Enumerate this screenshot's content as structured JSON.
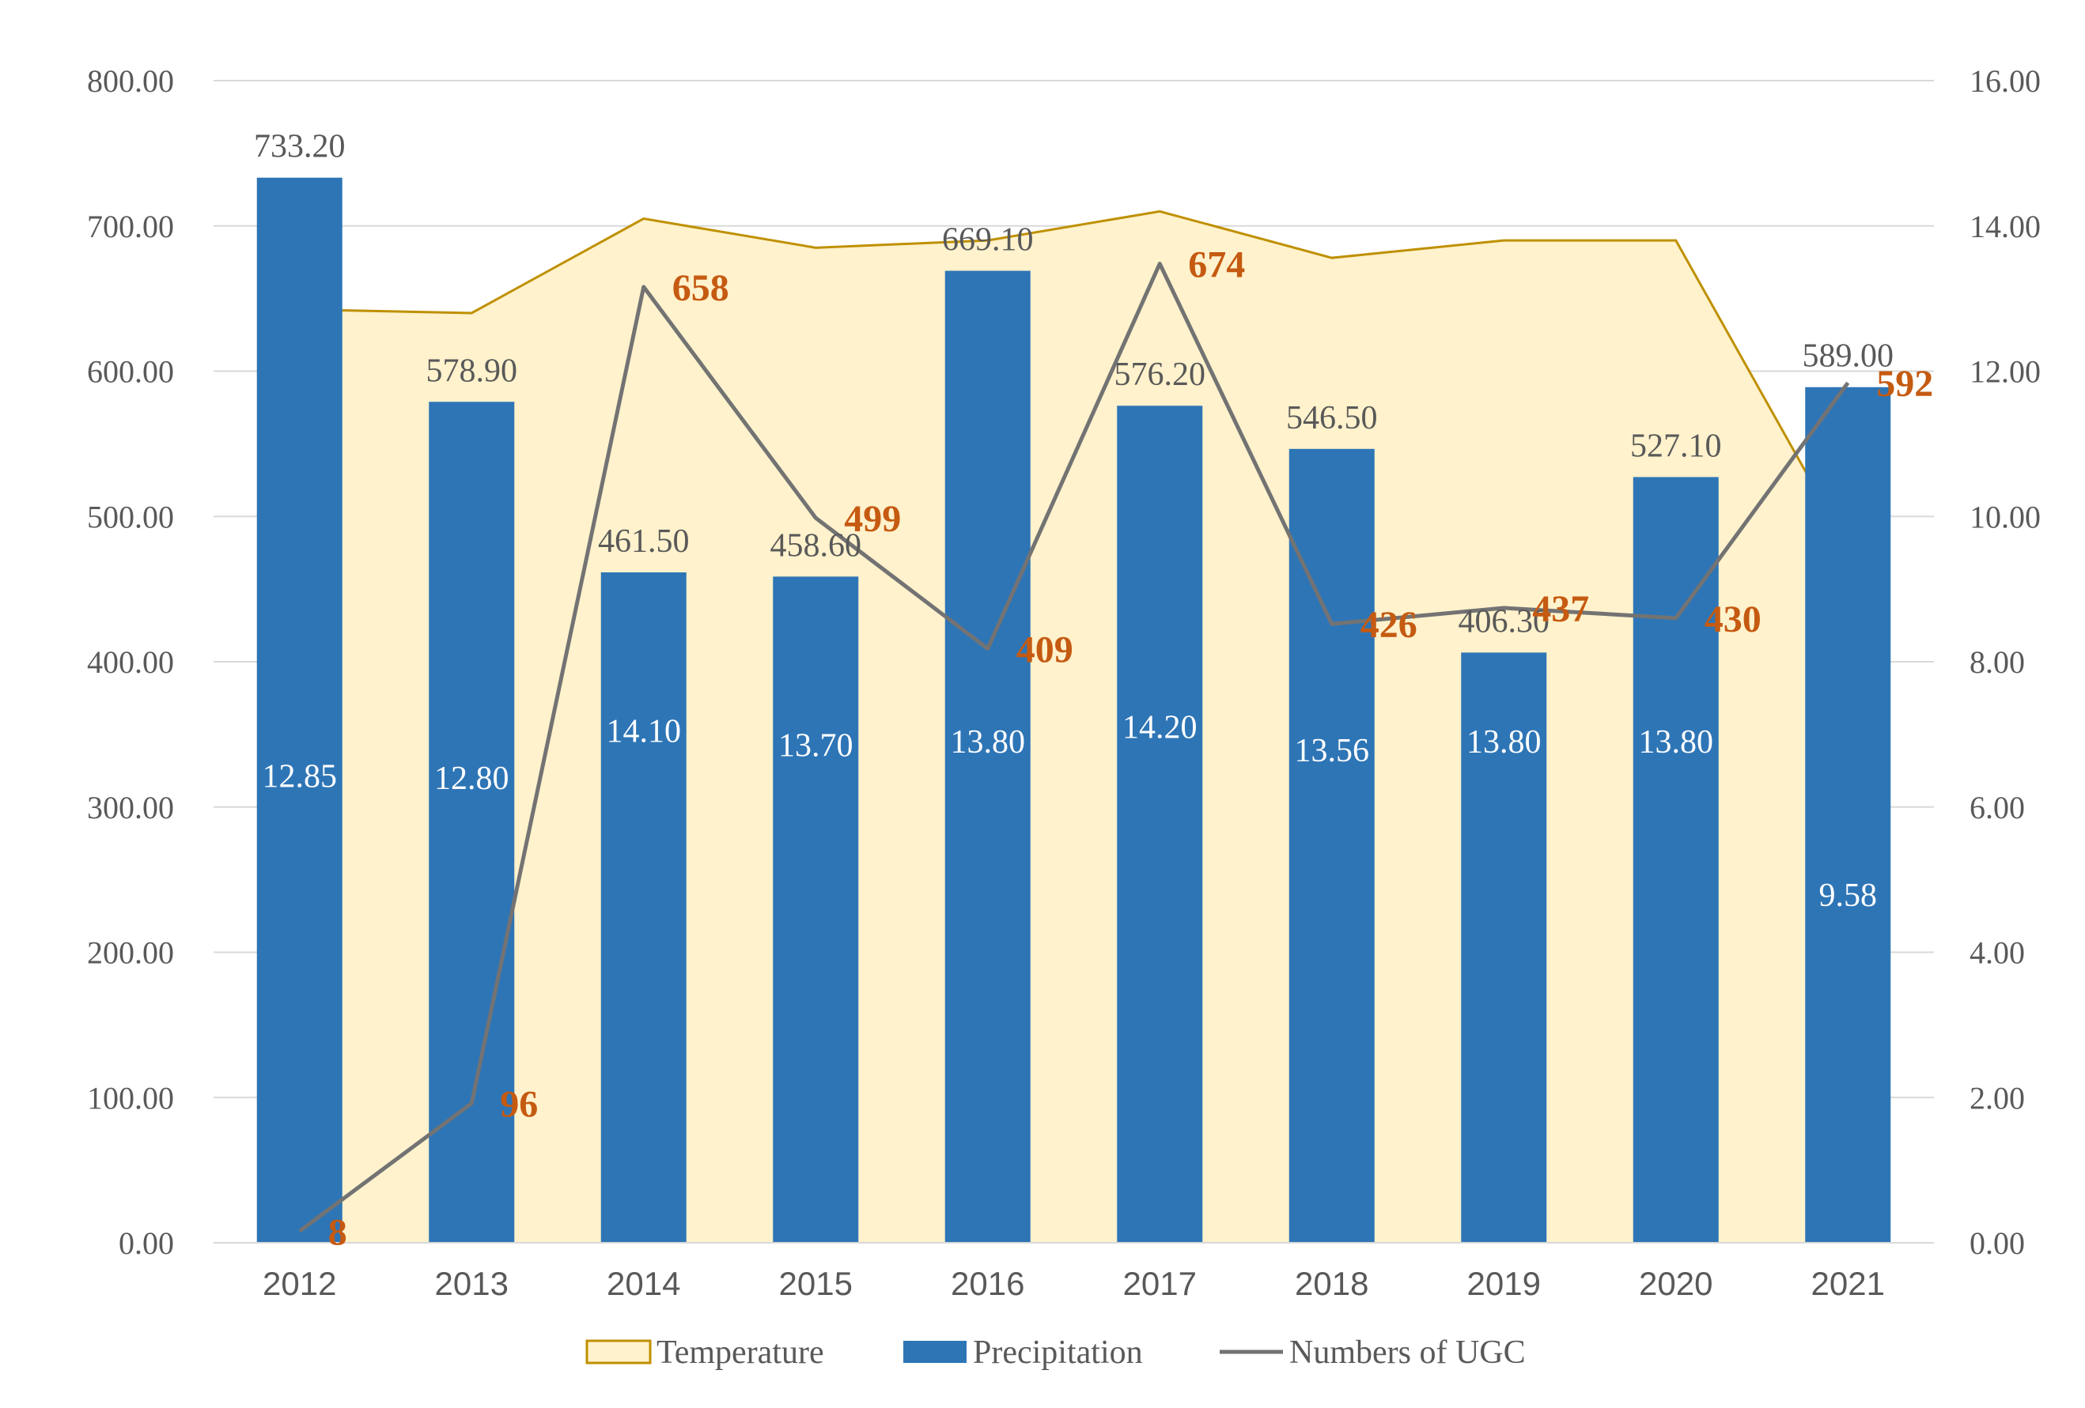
{
  "chart_data": {
    "type": "bar",
    "categories": [
      "2012",
      "2013",
      "2014",
      "2015",
      "2016",
      "2017",
      "2018",
      "2019",
      "2020",
      "2021"
    ],
    "series": [
      {
        "name": "Temperature",
        "type": "area",
        "axis": "right",
        "values": [
          12.85,
          12.8,
          14.1,
          13.7,
          13.8,
          14.2,
          13.56,
          13.8,
          13.8,
          9.58
        ],
        "labels": [
          "12.85",
          "12.80",
          "14.10",
          "13.70",
          "13.80",
          "14.20",
          "13.56",
          "13.80",
          "13.80",
          "9.58"
        ]
      },
      {
        "name": "Precipitation",
        "type": "bar",
        "axis": "left",
        "values": [
          733.2,
          578.9,
          461.5,
          458.6,
          669.1,
          576.2,
          546.5,
          406.3,
          527.1,
          589.0
        ],
        "labels": [
          "733.20",
          "578.90",
          "461.50",
          "458.60",
          "669.10",
          "576.20",
          "546.50",
          "406.30",
          "527.10",
          "589.00"
        ]
      },
      {
        "name": "Numbers of UGC",
        "type": "line",
        "axis": "right",
        "values": [
          8,
          96,
          658,
          499,
          409,
          674,
          426,
          437,
          430,
          592
        ],
        "labels": [
          "8",
          "96",
          "658",
          "499",
          "409",
          "674",
          "426",
          "437",
          "430",
          "592"
        ]
      }
    ],
    "y_left": {
      "min": 0,
      "max": 800,
      "ticks": [
        "0.00",
        "100.00",
        "200.00",
        "300.00",
        "400.00",
        "500.00",
        "600.00",
        "700.00",
        "800.00"
      ]
    },
    "y_right": {
      "min": 0,
      "max": 16,
      "ticks": [
        "0.00",
        "2.00",
        "4.00",
        "6.00",
        "8.00",
        "10.00",
        "12.00",
        "14.00",
        "16.00"
      ]
    },
    "ugc_scale": {
      "min": 0,
      "max": 800
    },
    "grid": true,
    "legend_position": "bottom",
    "colors": {
      "temperature_fill": "#fff2cc",
      "temperature_line": "#bf9000",
      "precipitation": "#2e75b6",
      "ugc_line": "#737373",
      "ugc_label": "#c55a11",
      "grid": "#d9d9d9"
    }
  }
}
